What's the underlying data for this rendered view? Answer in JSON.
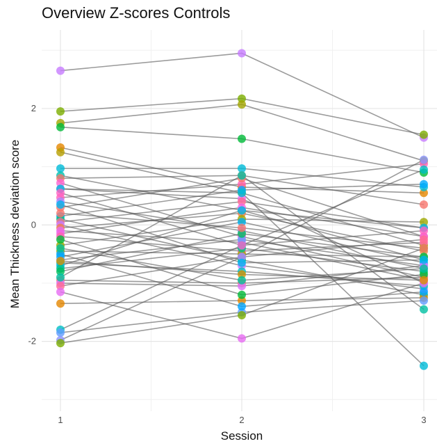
{
  "chart_data": {
    "type": "line",
    "title": "Overview Z-scores Controls",
    "xlabel": "Session",
    "ylabel": "Mean Thickness deviation score",
    "x": [
      1,
      2,
      3
    ],
    "x_ticks": [
      "1",
      "2",
      "3"
    ],
    "y_ticks": [
      {
        "value": -2,
        "label": "-2"
      },
      {
        "value": 0,
        "label": "0"
      },
      {
        "value": 2,
        "label": "2"
      }
    ],
    "ylim": [
      -3.2,
      3.35
    ],
    "xlim": [
      0.9,
      3.1
    ],
    "grid": true,
    "legend": "none",
    "line_color": "#595959",
    "series": [
      {
        "values": [
          2.65,
          2.95,
          1.5
        ],
        "color": "#C77CFF"
      },
      {
        "values": [
          1.95,
          2.17,
          1.55
        ],
        "color": "#7CAE00"
      },
      {
        "values": [
          1.75,
          2.07,
          1.1
        ],
        "color": "#A3A500"
      },
      {
        "values": [
          1.68,
          1.48,
          0.9
        ],
        "color": "#00BA38"
      },
      {
        "values": [
          1.33,
          0.65,
          0.55
        ],
        "color": "#E58700"
      },
      {
        "values": [
          1.25,
          0.55,
          -0.35
        ],
        "color": "#B79F00"
      },
      {
        "values": [
          0.97,
          0.97,
          0.65
        ],
        "color": "#00BCD8"
      },
      {
        "values": [
          0.85,
          0.25,
          -0.6
        ],
        "color": "#00C0AF"
      },
      {
        "values": [
          0.8,
          0.85,
          0.35
        ],
        "color": "#F8766D"
      },
      {
        "values": [
          0.72,
          -0.2,
          -0.9
        ],
        "color": "#FD61D1"
      },
      {
        "values": [
          0.62,
          0.45,
          -1.0
        ],
        "color": "#E76BF3"
      },
      {
        "values": [
          0.47,
          0.7,
          1.05
        ],
        "color": "#FF62BC"
      },
      {
        "values": [
          0.4,
          -0.1,
          -0.75
        ],
        "color": "#A58AFF"
      },
      {
        "values": [
          0.3,
          0.8,
          -0.2
        ],
        "color": "#F8766D"
      },
      {
        "values": [
          0.15,
          0.6,
          0.7
        ],
        "color": "#00A9FF"
      },
      {
        "values": [
          0.1,
          -0.6,
          -1.2
        ],
        "color": "#00BF7D"
      },
      {
        "values": [
          0.05,
          0.4,
          -0.05
        ],
        "color": "#FF6C91"
      },
      {
        "values": [
          0.0,
          -0.7,
          -1.1
        ],
        "color": "#C77CFF"
      },
      {
        "values": [
          -0.05,
          0.2,
          -0.45
        ],
        "color": "#EF7F49"
      },
      {
        "values": [
          -0.1,
          -0.3,
          -0.95
        ],
        "color": "#E76BF3"
      },
      {
        "values": [
          -0.15,
          0.3,
          -0.2
        ],
        "color": "#F564E3"
      },
      {
        "values": [
          -0.2,
          -0.45,
          -0.3
        ],
        "color": "#FF64B0"
      },
      {
        "values": [
          -0.35,
          0.1,
          0.05
        ],
        "color": "#9DA700"
      },
      {
        "values": [
          -0.45,
          -0.5,
          -0.55
        ],
        "color": "#A3A500"
      },
      {
        "values": [
          -0.55,
          0.05,
          -0.65
        ],
        "color": "#00B0F6"
      },
      {
        "values": [
          -0.6,
          -0.25,
          -0.7
        ],
        "color": "#619CFF"
      },
      {
        "values": [
          -0.65,
          -0.8,
          -1.05
        ],
        "color": "#00BFC4"
      },
      {
        "values": [
          -0.7,
          0.25,
          -0.05
        ],
        "color": "#00B8E7"
      },
      {
        "values": [
          -0.75,
          -0.4,
          -0.8
        ],
        "color": "#00C08B"
      },
      {
        "values": [
          -0.8,
          -0.15,
          -0.55
        ],
        "color": "#00BD5C"
      },
      {
        "values": [
          -0.95,
          -1.0,
          -0.9
        ],
        "color": "#F8766D"
      },
      {
        "values": [
          -1.0,
          -1.05,
          -0.7
        ],
        "color": "#DB72FB"
      },
      {
        "values": [
          -1.05,
          -0.55,
          -0.25
        ],
        "color": "#FF6C91"
      },
      {
        "values": [
          -1.15,
          -1.95,
          -1.0
        ],
        "color": "#E76BF3"
      },
      {
        "values": [
          -1.35,
          -1.3,
          -1.25
        ],
        "color": "#E58700"
      },
      {
        "values": [
          -1.8,
          -0.35,
          0.95
        ],
        "color": "#00BFC4"
      },
      {
        "values": [
          -1.85,
          -1.5,
          -1.3
        ],
        "color": "#619CFF"
      },
      {
        "values": [
          -1.98,
          -0.55,
          1.12
        ],
        "color": "#8B93FF"
      },
      {
        "values": [
          -2.03,
          -1.55,
          -0.4
        ],
        "color": "#7CAE00"
      },
      {
        "values": [
          0.62,
          0.55,
          -2.42
        ],
        "color": "#00BCD8"
      },
      {
        "values": [
          -0.9,
          0.85,
          -1.45
        ],
        "color": "#00C1A3"
      },
      {
        "values": [
          -0.5,
          -1.4,
          -1.15
        ],
        "color": "#00A5FF"
      },
      {
        "values": [
          -0.25,
          -1.2,
          -0.85
        ],
        "color": "#00BA38"
      },
      {
        "values": [
          0.2,
          -0.05,
          -0.4
        ],
        "color": "#F8766D"
      },
      {
        "values": [
          -0.62,
          -0.85,
          -0.95
        ],
        "color": "#D89000"
      },
      {
        "values": [
          -0.4,
          -0.95,
          -0.75
        ],
        "color": "#00C19A"
      },
      {
        "values": [
          0.55,
          -0.35,
          -0.1
        ],
        "color": "#FF61C3"
      },
      {
        "values": [
          0.35,
          -0.65,
          -0.6
        ],
        "color": "#00B4F0"
      }
    ]
  }
}
